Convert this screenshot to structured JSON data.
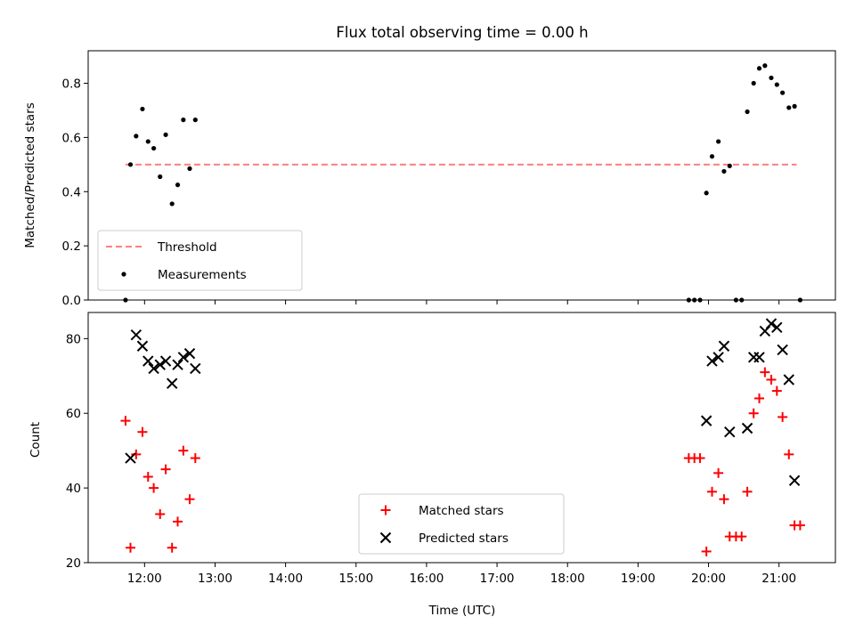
{
  "chart_data": {
    "type": "scatter",
    "title": "Flux total observing time = 0.00 h",
    "xlabel": "Time (UTC)",
    "x_ticks": [
      "12:00",
      "13:00",
      "14:00",
      "15:00",
      "16:00",
      "17:00",
      "18:00",
      "19:00",
      "20:00",
      "21:00"
    ],
    "x_range_hours": [
      11.2,
      21.8
    ],
    "top_panel": {
      "ylabel": "Matched/Predicted stars",
      "ylim": [
        0.0,
        0.92
      ],
      "yticks": [
        "0.0",
        "0.2",
        "0.4",
        "0.6",
        "0.8"
      ],
      "ytick_values": [
        0.0,
        0.2,
        0.4,
        0.6,
        0.8
      ],
      "legend_position": "lower-left",
      "threshold": {
        "name": "Threshold",
        "value": 0.5,
        "x_start": 11.73,
        "x_end": 21.25,
        "color": "#ff7f7f"
      },
      "measurements": {
        "name": "Measurements",
        "color": "#000000",
        "points": [
          [
            11.73,
            0.0
          ],
          [
            11.8,
            0.5
          ],
          [
            11.88,
            0.605
          ],
          [
            11.97,
            0.705
          ],
          [
            12.05,
            0.585
          ],
          [
            12.13,
            0.56
          ],
          [
            12.22,
            0.455
          ],
          [
            12.3,
            0.61
          ],
          [
            12.39,
            0.355
          ],
          [
            12.47,
            0.425
          ],
          [
            12.55,
            0.665
          ],
          [
            12.64,
            0.485
          ],
          [
            12.72,
            0.665
          ],
          [
            19.72,
            0.0
          ],
          [
            19.8,
            0.0
          ],
          [
            19.88,
            0.0
          ],
          [
            19.97,
            0.395
          ],
          [
            20.05,
            0.53
          ],
          [
            20.14,
            0.585
          ],
          [
            20.22,
            0.475
          ],
          [
            20.3,
            0.495
          ],
          [
            20.39,
            0.0
          ],
          [
            20.47,
            0.0
          ],
          [
            20.55,
            0.695
          ],
          [
            20.64,
            0.8
          ],
          [
            20.72,
            0.855
          ],
          [
            20.8,
            0.865
          ],
          [
            20.89,
            0.82
          ],
          [
            20.97,
            0.795
          ],
          [
            21.05,
            0.765
          ],
          [
            21.14,
            0.71
          ],
          [
            21.22,
            0.715
          ],
          [
            21.3,
            0.0
          ]
        ]
      }
    },
    "bottom_panel": {
      "ylabel": "Count",
      "ylim": [
        20,
        87
      ],
      "yticks": [
        "20",
        "40",
        "60",
        "80"
      ],
      "ytick_values": [
        20,
        40,
        60,
        80
      ],
      "legend_position": "lower-center",
      "series": [
        {
          "name": "Matched stars",
          "marker": "plus",
          "color": "#ff0000",
          "points": [
            [
              11.73,
              58
            ],
            [
              11.8,
              24
            ],
            [
              11.88,
              49
            ],
            [
              11.97,
              55
            ],
            [
              12.05,
              43
            ],
            [
              12.13,
              40
            ],
            [
              12.22,
              33
            ],
            [
              12.3,
              45
            ],
            [
              12.39,
              24
            ],
            [
              12.47,
              31
            ],
            [
              12.55,
              50
            ],
            [
              12.64,
              37
            ],
            [
              12.72,
              48
            ],
            [
              19.72,
              48
            ],
            [
              19.8,
              48
            ],
            [
              19.88,
              48
            ],
            [
              19.97,
              23
            ],
            [
              20.05,
              39
            ],
            [
              20.14,
              44
            ],
            [
              20.22,
              37
            ],
            [
              20.3,
              27
            ],
            [
              20.39,
              27
            ],
            [
              20.47,
              27
            ],
            [
              20.55,
              39
            ],
            [
              20.64,
              60
            ],
            [
              20.72,
              64
            ],
            [
              20.8,
              71
            ],
            [
              20.89,
              69
            ],
            [
              20.97,
              66
            ],
            [
              21.05,
              59
            ],
            [
              21.14,
              49
            ],
            [
              21.22,
              30
            ],
            [
              21.3,
              30
            ]
          ]
        },
        {
          "name": "Predicted stars",
          "marker": "x",
          "color": "#000000",
          "points": [
            [
              11.8,
              48
            ],
            [
              11.88,
              81
            ],
            [
              11.97,
              78
            ],
            [
              12.05,
              74
            ],
            [
              12.13,
              72
            ],
            [
              12.22,
              73
            ],
            [
              12.3,
              74
            ],
            [
              12.39,
              68
            ],
            [
              12.47,
              73
            ],
            [
              12.55,
              75
            ],
            [
              12.64,
              76
            ],
            [
              12.72,
              72
            ],
            [
              19.97,
              58
            ],
            [
              20.05,
              74
            ],
            [
              20.14,
              75
            ],
            [
              20.22,
              78
            ],
            [
              20.3,
              55
            ],
            [
              20.55,
              56
            ],
            [
              20.64,
              75
            ],
            [
              20.72,
              75
            ],
            [
              20.8,
              82
            ],
            [
              20.89,
              84
            ],
            [
              20.97,
              83
            ],
            [
              21.05,
              77
            ],
            [
              21.14,
              69
            ],
            [
              21.22,
              42
            ]
          ]
        }
      ]
    }
  }
}
